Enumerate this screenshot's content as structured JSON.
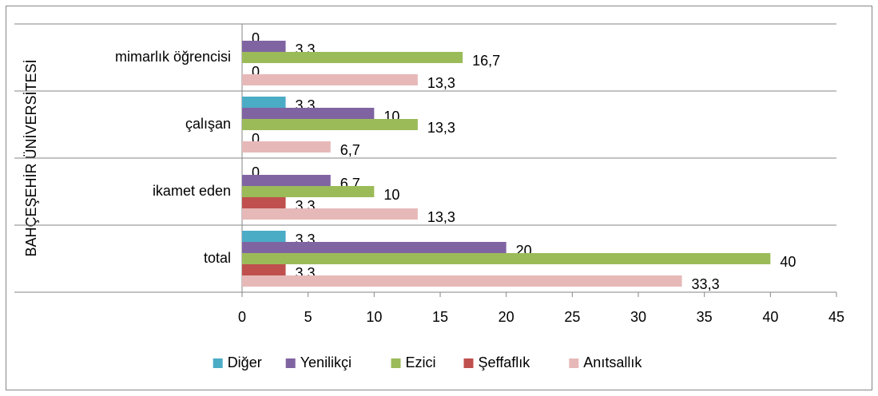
{
  "chart_data": {
    "type": "bar",
    "orientation": "horizontal",
    "group_label": "BAHÇEŞEHİR ÜNİVERSİTESİ",
    "categories": [
      "mimarlık öğrencisi",
      "çalışan",
      "ikamet eden",
      "total"
    ],
    "series": [
      {
        "name": "Diğer",
        "color": "#4bacc6",
        "values": [
          0,
          3.3,
          0,
          3.3
        ],
        "value_labels": [
          "0",
          "3,3",
          "0",
          "3,3"
        ]
      },
      {
        "name": "Yenilikçi",
        "color": "#8064a2",
        "values": [
          3.3,
          10,
          6.7,
          20
        ],
        "value_labels": [
          "3,3",
          "10",
          "6,7",
          "20"
        ]
      },
      {
        "name": "Ezici",
        "color": "#9bbb59",
        "values": [
          16.7,
          13.3,
          10,
          40
        ],
        "value_labels": [
          "16,7",
          "13,3",
          "10",
          "40"
        ]
      },
      {
        "name": "Şeffaflık",
        "color": "#c0504d",
        "values": [
          0,
          0,
          3.3,
          3.3
        ],
        "value_labels": [
          "0",
          "0",
          "3,3",
          "3,3"
        ]
      },
      {
        "name": "Anıtsallık",
        "color": "#e6b9b8",
        "values": [
          13.3,
          6.7,
          13.3,
          33.3
        ],
        "value_labels": [
          "13,3",
          "6,7",
          "13,3",
          "33,3"
        ]
      }
    ],
    "xlim": [
      0,
      45
    ],
    "xticks": [
      0,
      5,
      10,
      15,
      20,
      25,
      30,
      35,
      40,
      45
    ],
    "legend": "bottom"
  }
}
